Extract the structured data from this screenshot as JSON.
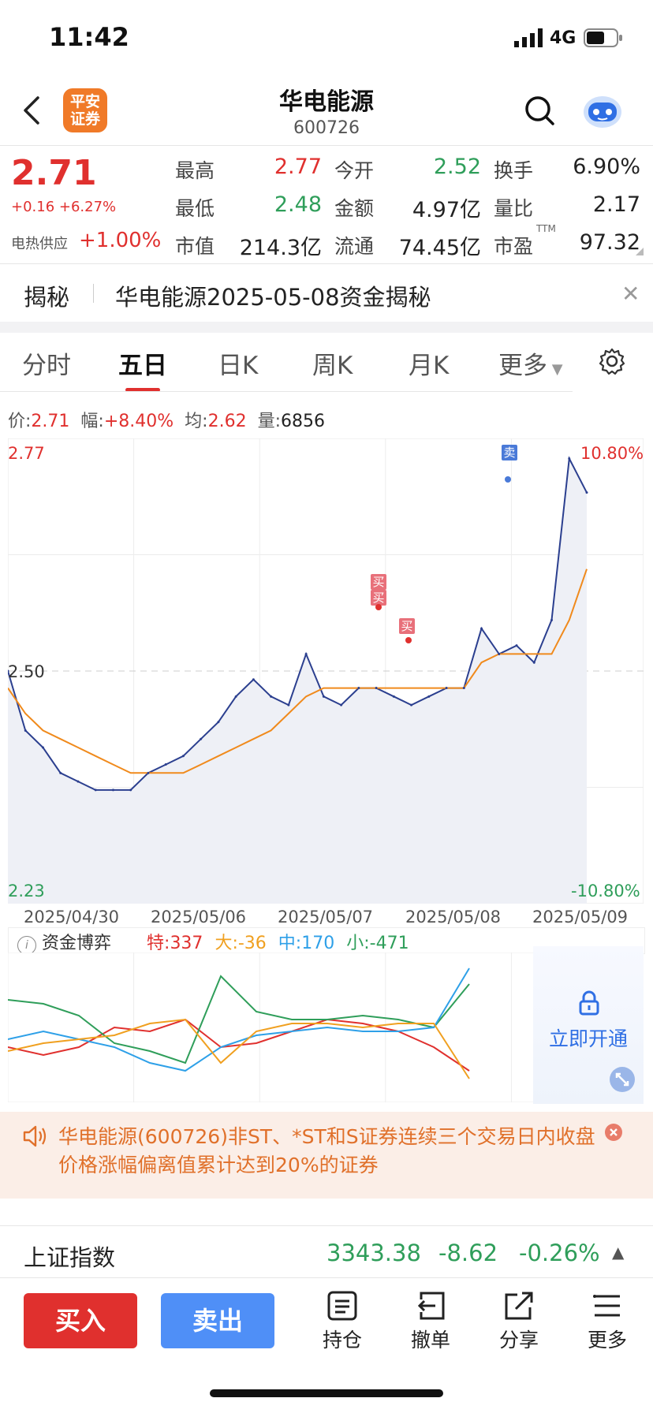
{
  "status": {
    "time": "11:42",
    "network": "4G"
  },
  "header": {
    "logo_line1": "平安",
    "logo_line2": "证券",
    "title": "华电能源",
    "code": "600726"
  },
  "quote": {
    "price": "2.71",
    "change": "+0.16 +6.27%",
    "sector_name": "电热供应",
    "sector_change": "+1.00%",
    "high_label": "最高",
    "high": "2.77",
    "open_label": "今开",
    "open": "2.52",
    "turnover_label": "换手",
    "turnover": "6.90%",
    "low_label": "最低",
    "low": "2.48",
    "amount_label": "金额",
    "amount": "4.97亿",
    "vol_ratio_label": "量比",
    "vol_ratio": "2.17",
    "mktcap_label": "市值",
    "mktcap": "214.3亿",
    "float_label": "流通",
    "float": "74.45亿",
    "pe_label": "市盈",
    "pe_sup": "TTM",
    "pe": "97.32"
  },
  "reveal": {
    "label": "揭秘",
    "text": "华电能源2025-05-08资金揭秘"
  },
  "tabs": [
    "分时",
    "五日",
    "日K",
    "周K",
    "月K",
    "更多"
  ],
  "active_tab": 1,
  "chart_info": {
    "price_label": "价:",
    "price": "2.71",
    "amp_label": "幅:",
    "amp": "+8.40%",
    "avg_label": "均:",
    "avg": "2.62",
    "vol_label": "量:",
    "vol": "6856"
  },
  "chart_data": {
    "type": "line",
    "ylim": [
      2.23,
      2.77
    ],
    "y_labels": {
      "top": "2.77",
      "mid": "2.50",
      "bottom": "2.23",
      "top_pct": "10.80%",
      "bottom_pct": "-10.80%"
    },
    "x_labels": [
      "2025/04/30",
      "2025/05/06",
      "2025/05/07",
      "2025/05/08",
      "2025/05/09"
    ],
    "markers": {
      "buy": "买",
      "sell": "卖"
    },
    "series": [
      {
        "values": [
          2.5,
          2.43,
          2.41,
          2.38,
          2.37,
          2.36,
          2.36,
          2.36,
          2.38,
          2.39,
          2.4,
          2.42,
          2.44,
          2.47,
          2.49,
          2.47,
          2.46,
          2.52,
          2.47,
          2.46,
          2.48,
          2.48,
          2.47,
          2.46,
          2.47,
          2.48,
          2.48,
          2.55,
          2.52,
          2.53,
          2.51,
          2.56,
          2.75,
          2.71
        ]
      },
      {
        "values": [
          2.48,
          2.45,
          2.43,
          2.42,
          2.41,
          2.4,
          2.39,
          2.38,
          2.38,
          2.38,
          2.38,
          2.39,
          2.4,
          2.41,
          2.42,
          2.43,
          2.45,
          2.47,
          2.48,
          2.48,
          2.48,
          2.48,
          2.48,
          2.48,
          2.48,
          2.48,
          2.48,
          2.51,
          2.52,
          2.52,
          2.52,
          2.52,
          2.56,
          2.62
        ]
      }
    ]
  },
  "fund": {
    "title": "资金博弈",
    "special_label": "特:",
    "special": "337",
    "big_label": "大:",
    "big": "-36",
    "mid_label": "中:",
    "mid": "170",
    "small_label": "小:",
    "small": "-471",
    "unlock": "立即开通"
  },
  "notice": {
    "text": "华电能源(600726)非ST、*ST和S证券连续三个交易日内收盘价格涨幅偏离值累计达到20%的证券"
  },
  "index": {
    "name": "上证指数",
    "value": "3343.38",
    "change": "-8.62",
    "pct": "-0.26%"
  },
  "bottom": {
    "buy": "买入",
    "sell": "卖出",
    "hold": "持仓",
    "cancel": "撤单",
    "share": "分享",
    "more": "更多"
  }
}
